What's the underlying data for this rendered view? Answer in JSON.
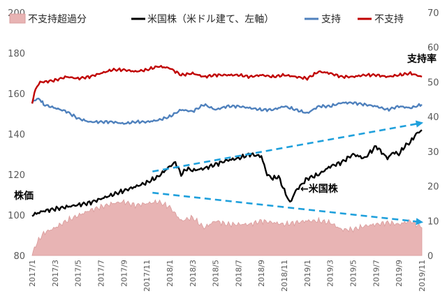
{
  "chart_data": {
    "type": "line",
    "legend_position": "top",
    "legend": {
      "excess": "不支持超過分",
      "stock": "米国株（米ドル建て、左軸）",
      "approve": "支持",
      "disapprove": "不支持"
    },
    "annotations": {
      "left_axis_label": "株価",
      "right_axis_label": "支持率",
      "stock_arrow_label": "←米国株"
    },
    "colors": {
      "excess_fill": "#e8b4b4",
      "excess_stroke": "#d99b9b",
      "stock": "#000000",
      "approve": "#4f81bd",
      "disapprove": "#c00000",
      "trend_arrow": "#1fa0dc",
      "tick_text": "#595959"
    },
    "y_left": {
      "min": 80,
      "max": 200,
      "ticks": [
        80,
        100,
        120,
        140,
        160,
        180,
        200
      ]
    },
    "y_right": {
      "min": 0,
      "max": 70,
      "ticks": [
        0,
        10,
        20,
        30,
        40,
        50,
        60,
        70
      ]
    },
    "x_tick_labels": [
      "2017/1",
      "2017/3",
      "2017/5",
      "2017/7",
      "2017/9",
      "2017/11",
      "2018/1",
      "2018/3",
      "2018/5",
      "2018/7",
      "2018/9",
      "2018/11",
      "2019/1",
      "2019/3",
      "2019/5",
      "2019/7",
      "2019/9",
      "2019/11"
    ],
    "x_month_index_range": [
      0,
      34
    ],
    "series": [
      {
        "name": "不支持",
        "axis": "right",
        "x_month_index": [
          0,
          0.3,
          0.7,
          1,
          2,
          3,
          4,
          5,
          6,
          7,
          8,
          9,
          10,
          11,
          12,
          13,
          14,
          15,
          16,
          17,
          18,
          19,
          20,
          21,
          22,
          23,
          24,
          25,
          26,
          27,
          28,
          29,
          30,
          31,
          32,
          33,
          34
        ],
        "values": [
          44,
          48,
          50,
          50,
          50.5,
          51.5,
          51,
          51.5,
          52.5,
          53.5,
          53.5,
          53,
          53.5,
          54.5,
          54,
          52,
          52.5,
          51.5,
          52,
          52,
          52,
          51.5,
          52,
          51.5,
          52,
          51.5,
          51,
          53,
          52.5,
          51.5,
          51.5,
          52,
          52,
          51.5,
          52,
          52.5,
          51.5
        ]
      },
      {
        "name": "支持",
        "axis": "right",
        "x_month_index": [
          0,
          0.3,
          0.7,
          1,
          2,
          3,
          4,
          5,
          6,
          7,
          8,
          9,
          10,
          11,
          12,
          13,
          14,
          15,
          16,
          17,
          18,
          19,
          20,
          21,
          22,
          23,
          24,
          25,
          26,
          27,
          28,
          29,
          30,
          31,
          32,
          33,
          34
        ],
        "values": [
          44,
          45,
          45,
          43.5,
          42.5,
          41.5,
          39.5,
          38.5,
          38.5,
          38.5,
          38,
          38.5,
          38.5,
          39,
          40,
          42,
          41.5,
          43.5,
          42,
          43,
          43,
          42.5,
          42,
          42,
          43,
          42,
          41,
          43,
          43,
          44,
          44,
          43.5,
          43,
          42,
          43,
          42.5,
          43.5
        ]
      },
      {
        "name": "不支持超過分",
        "axis": "right",
        "style": "area",
        "x_month_index": [
          0,
          0.3,
          0.7,
          1,
          2,
          3,
          4,
          5,
          6,
          7,
          8,
          9,
          10,
          11,
          12,
          13,
          14,
          15,
          16,
          17,
          18,
          19,
          20,
          21,
          22,
          23,
          24,
          25,
          26,
          27,
          28,
          29,
          30,
          31,
          32,
          33,
          34
        ],
        "values": [
          0,
          3,
          5,
          6.5,
          8,
          10,
          11.5,
          13,
          14,
          15,
          15.5,
          14.5,
          15,
          15.5,
          14,
          10,
          11,
          8,
          10,
          9,
          9,
          9,
          10,
          9.5,
          9,
          9.5,
          10,
          10,
          9.5,
          7.5,
          7.5,
          8.5,
          9,
          9.5,
          9,
          10,
          8
        ]
      },
      {
        "name": "米国株",
        "axis": "left",
        "x_month_index": [
          0,
          1,
          2,
          3,
          4,
          5,
          6,
          7,
          8,
          9,
          10,
          11,
          12,
          12.5,
          13,
          13.5,
          14,
          15,
          16,
          17,
          18,
          19,
          20,
          20.5,
          21,
          21.5,
          22,
          22.5,
          23,
          24,
          25,
          26,
          27,
          28,
          29,
          30,
          30.5,
          31,
          31.5,
          32,
          32.5,
          33,
          33.5,
          34
        ],
        "values": [
          100,
          102,
          103,
          104,
          105,
          106,
          108,
          110,
          112,
          114,
          116,
          119,
          124,
          126,
          120,
          123,
          122,
          123,
          125,
          127,
          128,
          130,
          129,
          120,
          118,
          119,
          112,
          106,
          112,
          118,
          120,
          124,
          126,
          130,
          128,
          134,
          131,
          128,
          131,
          130,
          134,
          136,
          140,
          142
        ]
      }
    ],
    "trend_arrows": [
      {
        "from": [
          10.5,
          121.5
        ],
        "to": [
          34,
          145.5
        ]
      },
      {
        "from": [
          10.5,
          111
        ],
        "to": [
          34,
          96.5
        ]
      }
    ]
  }
}
